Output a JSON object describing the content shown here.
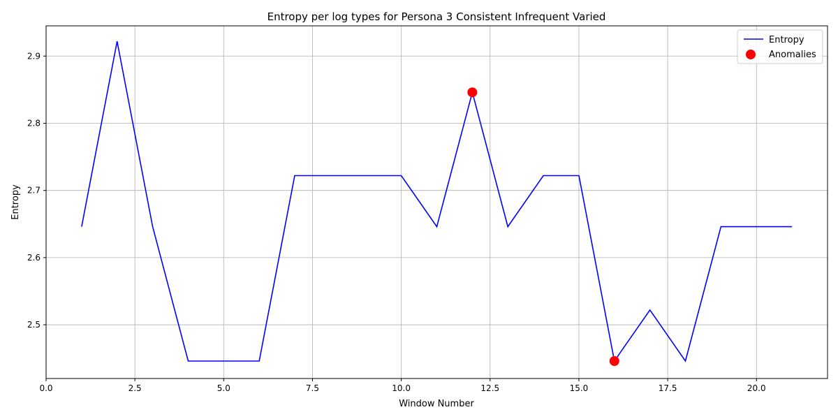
{
  "chart_data": {
    "type": "line",
    "title": "Entropy per log types for Persona 3 Consistent Infrequent Varied",
    "xlabel": "Window Number",
    "ylabel": "Entropy",
    "xlim": [
      0,
      22
    ],
    "ylim": [
      2.42,
      2.945
    ],
    "x_ticks": [
      0.0,
      2.5,
      5.0,
      7.5,
      10.0,
      12.5,
      15.0,
      17.5,
      20.0
    ],
    "x_tick_labels": [
      "0.0",
      "2.5",
      "5.0",
      "7.5",
      "10.0",
      "12.5",
      "15.0",
      "17.5",
      "20.0"
    ],
    "y_ticks": [
      2.5,
      2.6,
      2.7,
      2.8,
      2.9
    ],
    "y_tick_labels": [
      "2.5",
      "2.6",
      "2.7",
      "2.8",
      "2.9"
    ],
    "grid": true,
    "legend_position": "top-right",
    "series": [
      {
        "name": "Entropy",
        "kind": "line",
        "color": "#0000ff",
        "x": [
          1,
          2,
          3,
          4,
          5,
          6,
          7,
          8,
          9,
          10,
          11,
          12,
          13,
          14,
          15,
          16,
          17,
          18,
          19,
          20,
          21
        ],
        "y": [
          2.646,
          2.922,
          2.646,
          2.446,
          2.446,
          2.446,
          2.722,
          2.722,
          2.722,
          2.722,
          2.646,
          2.846,
          2.646,
          2.722,
          2.722,
          2.446,
          2.522,
          2.446,
          2.646,
          2.646,
          2.646
        ]
      },
      {
        "name": "Anomalies",
        "kind": "scatter",
        "color": "#ff0000",
        "x": [
          12,
          16
        ],
        "y": [
          2.846,
          2.446
        ]
      }
    ]
  }
}
